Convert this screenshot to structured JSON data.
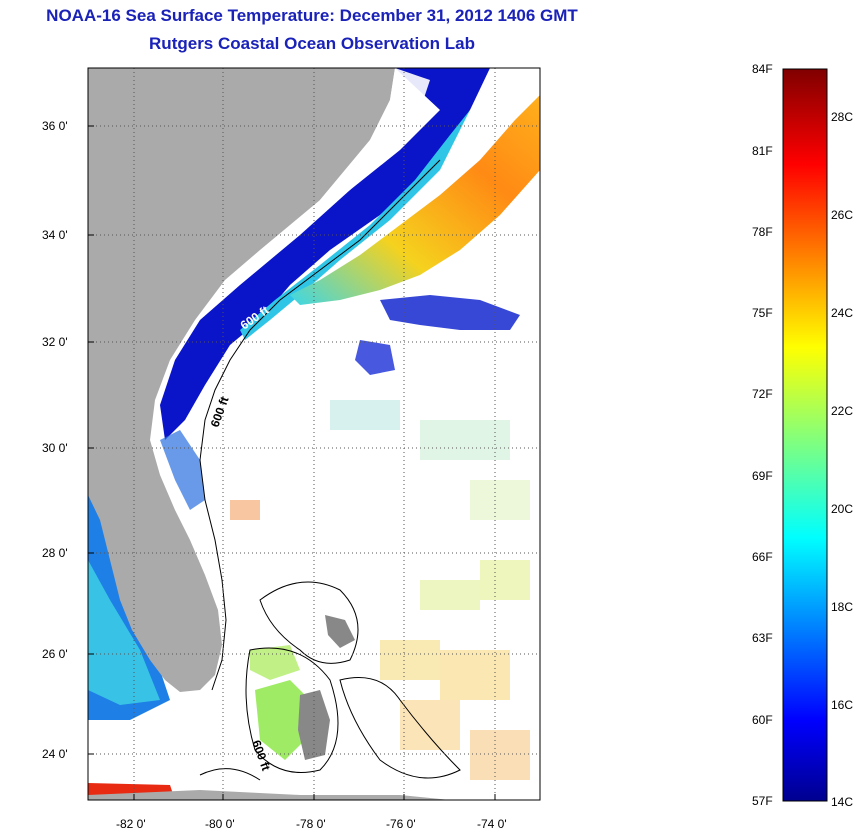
{
  "title": {
    "line1": "NOAA-16 Sea Surface Temperature:  December 31, 2012 1406 GMT",
    "line2": "Rutgers Coastal Ocean Observation Lab"
  },
  "map": {
    "lat_labels": [
      "36 0'",
      "34 0'",
      "32 0'",
      "30 0'",
      "28 0'",
      "26 0'",
      "24 0'"
    ],
    "lon_labels": [
      "-82 0'",
      "-80 0'",
      "-78 0'",
      "-76 0'",
      "-74 0'"
    ],
    "lat_range": [
      23.0,
      37.0
    ],
    "lon_range": [
      -83.0,
      -73.0
    ],
    "isobath_label": "600 ft",
    "colors": {
      "land": "#aaaaaa",
      "ocean_nodata": "#ffffff",
      "grid": "#555555"
    }
  },
  "colorbar": {
    "f_labels": [
      "84F",
      "81F",
      "78F",
      "75F",
      "72F",
      "69F",
      "66F",
      "63F",
      "60F",
      "57F"
    ],
    "c_labels": [
      "28C",
      "26C",
      "24C",
      "22C",
      "20C",
      "18C",
      "16C",
      "14C"
    ],
    "range_c": [
      14,
      29
    ]
  }
}
